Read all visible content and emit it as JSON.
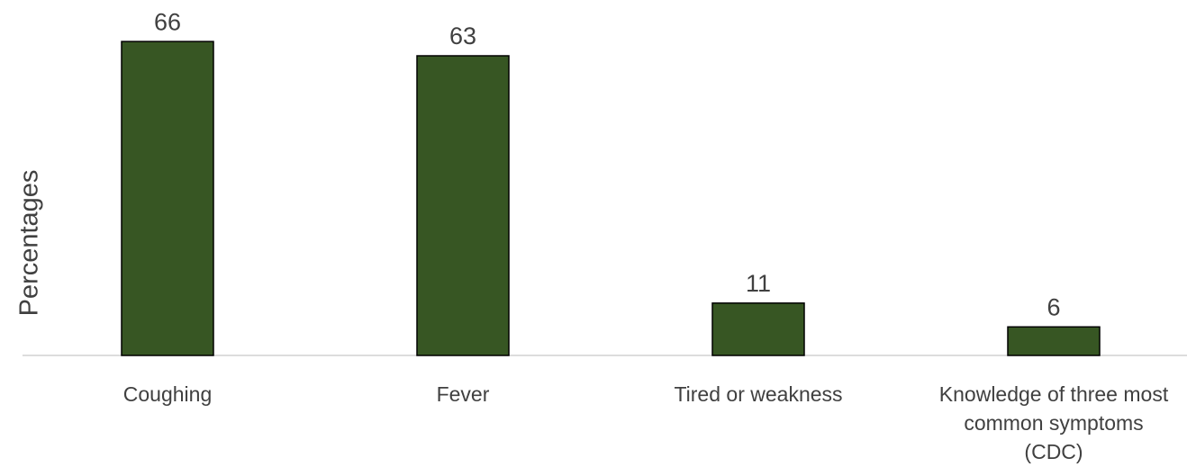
{
  "chart_data": {
    "type": "bar",
    "y_label": "Percentages",
    "categories": [
      "Coughing",
      "Fever",
      "Tired or weakness",
      "Knowledge of three most common symptoms (CDC)"
    ],
    "values": [
      66,
      63,
      11,
      6
    ],
    "color": "#375623",
    "ylim": [
      0,
      70
    ],
    "grid": false
  }
}
